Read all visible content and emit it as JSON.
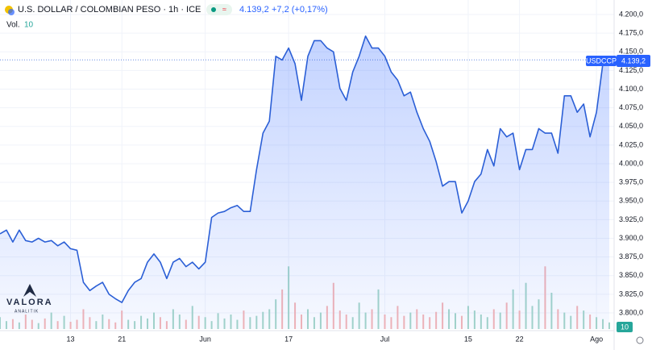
{
  "chart_data": {
    "type": "area",
    "title": "U.S. DOLLAR / COLOMBIAN PESO · 1h · ICE",
    "last_price_label": "4.139,2",
    "change_label": "+7,2 (+0,17%)",
    "symbol_label": "USDCCP",
    "volume_label": "Vol.",
    "watermark": [
      "VALORA",
      "ANALITIK"
    ],
    "series": [
      {
        "name": "USDCCP",
        "color": "#2b5fd6",
        "values": [
          3906,
          3911,
          3895,
          3911,
          3897,
          3895,
          3900,
          3895,
          3897,
          3890,
          3895,
          3886,
          3884,
          3841,
          3830,
          3836,
          3841,
          3825,
          3819,
          3814,
          3830,
          3841,
          3846,
          3868,
          3879,
          3868,
          3846,
          3868,
          3873,
          3862,
          3868,
          3859,
          3868,
          3928,
          3934,
          3936,
          3941,
          3944,
          3936,
          3936,
          3992,
          4041,
          4057,
          4144,
          4139,
          4155,
          4134,
          4085,
          4144,
          4165,
          4165,
          4155,
          4150,
          4101,
          4085,
          4123,
          4144,
          4171,
          4155,
          4155,
          4144,
          4123,
          4112,
          4091,
          4096,
          4069,
          4047,
          4030,
          4003,
          3970,
          3976,
          3976,
          3934,
          3950,
          3976,
          3986,
          4019,
          3997,
          4047,
          4036,
          4041,
          3992,
          4019,
          4019,
          4047,
          4041,
          4041,
          4014,
          4091,
          4091,
          4069,
          4080,
          4036,
          4069,
          4134,
          4139.2
        ]
      }
    ],
    "volume": {
      "up_color": "#a5d6c8",
      "down_color": "#f5b5b5",
      "values": [
        18,
        12,
        15,
        10,
        22,
        14,
        9,
        16,
        25,
        12,
        20,
        11,
        14,
        30,
        18,
        12,
        22,
        15,
        10,
        28,
        14,
        12,
        20,
        16,
        25,
        18,
        12,
        30,
        22,
        14,
        35,
        20,
        18,
        12,
        24,
        16,
        22,
        14,
        28,
        18,
        20,
        26,
        30,
        45,
        60,
        95,
        40,
        22,
        30,
        18,
        25,
        35,
        70,
        28,
        22,
        18,
        40,
        25,
        30,
        60,
        22,
        18,
        35,
        20,
        25,
        30,
        22,
        18,
        26,
        40,
        30,
        24,
        20,
        35,
        28,
        22,
        18,
        30,
        25,
        40,
        60,
        28,
        70,
        35,
        45,
        95,
        55,
        30,
        25,
        20,
        35,
        28,
        22,
        18,
        15,
        10
      ]
    },
    "volume_ylim": [
      0,
      110
    ],
    "xlim": [
      0,
      95
    ],
    "xticks": [
      {
        "value": 11,
        "label": "13"
      },
      {
        "value": 19,
        "label": "21"
      },
      {
        "value": 32,
        "label": "Jun"
      },
      {
        "value": 45,
        "label": "17"
      },
      {
        "value": 60,
        "label": "Jul"
      },
      {
        "value": 73,
        "label": "15"
      },
      {
        "value": 81,
        "label": "22"
      },
      {
        "value": 93,
        "label": "Ago"
      }
    ],
    "ylim": [
      3800,
      4200
    ],
    "yticks": [
      {
        "value": 3800,
        "label": "3.800,0"
      },
      {
        "value": 3825,
        "label": "3.825,0"
      },
      {
        "value": 3850,
        "label": "3.850,0"
      },
      {
        "value": 3875,
        "label": "3.875,0"
      },
      {
        "value": 3900,
        "label": "3.900,0"
      },
      {
        "value": 3925,
        "label": "3.925,0"
      },
      {
        "value": 3950,
        "label": "3.950,0"
      },
      {
        "value": 3975,
        "label": "3.975,0"
      },
      {
        "value": 4000,
        "label": "4.000,0"
      },
      {
        "value": 4025,
        "label": "4.025,0"
      },
      {
        "value": 4050,
        "label": "4.050,0"
      },
      {
        "value": 4075,
        "label": "4.075,0"
      },
      {
        "value": 4100,
        "label": "4.100,0"
      },
      {
        "value": 4125,
        "label": "4.125,0"
      },
      {
        "value": 4150,
        "label": "4.150,0"
      },
      {
        "value": 4175,
        "label": "4.175,0"
      },
      {
        "value": 4200,
        "label": "4.200,0"
      }
    ],
    "grid": true
  }
}
